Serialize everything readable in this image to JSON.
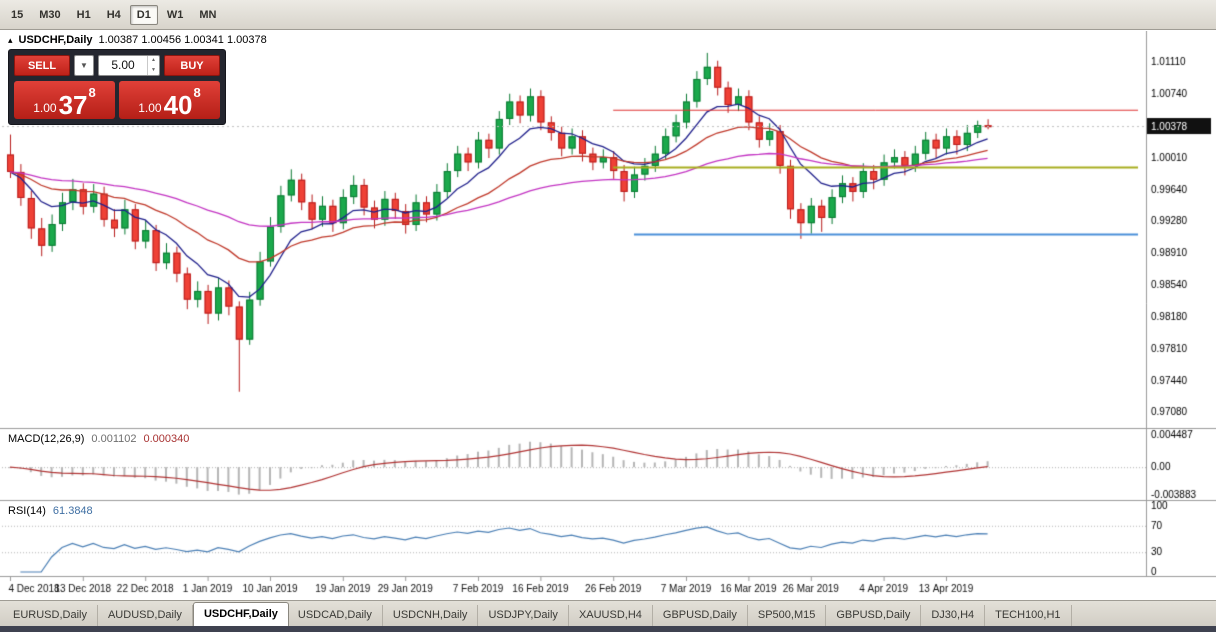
{
  "toolbar": {
    "timeframes": [
      "15",
      "M30",
      "H1",
      "H4",
      "D1",
      "W1",
      "MN"
    ],
    "active": "D1"
  },
  "chart_header": {
    "icon": "▴",
    "symbol": "USDCHF,Daily",
    "ohlc": "1.00387 1.00456 1.00341 1.00378"
  },
  "trade_panel": {
    "sell_label": "SELL",
    "buy_label": "BUY",
    "volume": "5.00",
    "dropdown_icon": "▼",
    "stepper_up": "▲",
    "stepper_down": "▼",
    "sell_quote": {
      "small": "1.00",
      "big": "37",
      "sup": "8"
    },
    "buy_quote": {
      "small": "1.00",
      "big": "40",
      "sup": "8"
    },
    "accent_red": "#c4302b"
  },
  "chart_data": {
    "type": "candlestick",
    "symbol": "USDCHF",
    "timeframe": "Daily",
    "current_price": "1.00378",
    "price_range": {
      "max": 1.0138,
      "min": 0.9696
    },
    "price_axis_labels": [
      "1.01110",
      "1.00740",
      "1.00370",
      "1.00010",
      "0.99640",
      "0.99280",
      "0.98910",
      "0.98540",
      "0.98180",
      "0.97810",
      "0.97440",
      "0.97080"
    ],
    "date_labels": [
      {
        "text": "4 Dec 2018",
        "index": 0
      },
      {
        "text": "13 Dec 2018",
        "index": 7
      },
      {
        "text": "22 Dec 2018",
        "index": 13
      },
      {
        "text": "1 Jan 2019",
        "index": 19
      },
      {
        "text": "10 Jan 2019",
        "index": 25
      },
      {
        "text": "19 Jan 2019",
        "index": 32
      },
      {
        "text": "29 Jan 2019",
        "index": 38
      },
      {
        "text": "7 Feb 2019",
        "index": 45
      },
      {
        "text": "16 Feb 2019",
        "index": 51
      },
      {
        "text": "26 Feb 2019",
        "index": 58
      },
      {
        "text": "7 Mar 2019",
        "index": 65
      },
      {
        "text": "16 Mar 2019",
        "index": 71
      },
      {
        "text": "26 Mar 2019",
        "index": 77
      },
      {
        "text": "4 Apr 2019",
        "index": 84
      },
      {
        "text": "13 Apr 2019",
        "index": 90
      }
    ],
    "candles": [
      [
        1.0005,
        1.0028,
        0.9978,
        0.9985
      ],
      [
        0.9985,
        0.9994,
        0.9946,
        0.9955
      ],
      [
        0.9955,
        0.9963,
        0.9908,
        0.992
      ],
      [
        0.992,
        0.9932,
        0.9888,
        0.99
      ],
      [
        0.99,
        0.9936,
        0.9893,
        0.9925
      ],
      [
        0.9925,
        0.9961,
        0.9917,
        0.995
      ],
      [
        0.995,
        0.9977,
        0.9941,
        0.9965
      ],
      [
        0.9965,
        0.9972,
        0.9936,
        0.9945
      ],
      [
        0.9945,
        0.9971,
        0.9938,
        0.996
      ],
      [
        0.996,
        0.9968,
        0.9922,
        0.993
      ],
      [
        0.993,
        0.9942,
        0.991,
        0.992
      ],
      [
        0.992,
        0.9953,
        0.9913,
        0.9942
      ],
      [
        0.9942,
        0.9948,
        0.9896,
        0.9905
      ],
      [
        0.9905,
        0.9929,
        0.9897,
        0.9918
      ],
      [
        0.9918,
        0.9924,
        0.9871,
        0.988
      ],
      [
        0.988,
        0.9903,
        0.9873,
        0.9892
      ],
      [
        0.9892,
        0.9899,
        0.9858,
        0.9868
      ],
      [
        0.9868,
        0.9875,
        0.9827,
        0.9838
      ],
      [
        0.9838,
        0.9859,
        0.9829,
        0.9848
      ],
      [
        0.9848,
        0.9855,
        0.981,
        0.9822
      ],
      [
        0.9822,
        0.9863,
        0.9814,
        0.9852
      ],
      [
        0.9852,
        0.986,
        0.982,
        0.983
      ],
      [
        0.983,
        0.9836,
        0.9732,
        0.9792
      ],
      [
        0.9792,
        0.9847,
        0.9786,
        0.9838
      ],
      [
        0.9838,
        0.9893,
        0.9831,
        0.9882
      ],
      [
        0.9882,
        0.9933,
        0.9876,
        0.9922
      ],
      [
        0.9922,
        0.9969,
        0.9915,
        0.9958
      ],
      [
        0.9958,
        0.9988,
        0.9951,
        0.9976
      ],
      [
        0.9976,
        0.9983,
        0.9941,
        0.995
      ],
      [
        0.995,
        0.9959,
        0.9919,
        0.993
      ],
      [
        0.993,
        0.9957,
        0.9922,
        0.9946
      ],
      [
        0.9946,
        0.9953,
        0.9916,
        0.9926
      ],
      [
        0.9926,
        0.9965,
        0.9919,
        0.9956
      ],
      [
        0.9956,
        0.9981,
        0.9948,
        0.997
      ],
      [
        0.997,
        0.9977,
        0.9935,
        0.9944
      ],
      [
        0.9944,
        0.9952,
        0.992,
        0.993
      ],
      [
        0.993,
        0.9963,
        0.9923,
        0.9954
      ],
      [
        0.9954,
        0.9961,
        0.9931,
        0.994
      ],
      [
        0.994,
        0.9948,
        0.9914,
        0.9924
      ],
      [
        0.9924,
        0.9959,
        0.9917,
        0.995
      ],
      [
        0.995,
        0.9957,
        0.9927,
        0.9936
      ],
      [
        0.9936,
        0.9971,
        0.9929,
        0.9962
      ],
      [
        0.9962,
        0.9995,
        0.9955,
        0.9986
      ],
      [
        0.9986,
        1.0015,
        0.9979,
        1.0006
      ],
      [
        1.0006,
        1.0013,
        0.9986,
        0.9996
      ],
      [
        0.9996,
        1.0031,
        0.9989,
        1.0022
      ],
      [
        1.0022,
        1.0029,
        1.0001,
        1.0012
      ],
      [
        1.0012,
        1.0055,
        1.0005,
        1.0046
      ],
      [
        1.0046,
        1.0075,
        1.0039,
        1.0066
      ],
      [
        1.0066,
        1.0073,
        1.0041,
        1.005
      ],
      [
        1.005,
        1.0081,
        1.0043,
        1.0072
      ],
      [
        1.0072,
        1.0079,
        1.0033,
        1.0042
      ],
      [
        1.0042,
        1.0049,
        1.0021,
        1.003
      ],
      [
        1.003,
        1.0037,
        1.0003,
        1.0012
      ],
      [
        1.0012,
        1.0035,
        1.0005,
        1.0026
      ],
      [
        1.0026,
        1.0033,
        0.9997,
        1.0006
      ],
      [
        1.0006,
        1.0013,
        0.9987,
        0.9996
      ],
      [
        0.9996,
        1.0011,
        0.9989,
        1.0002
      ],
      [
        1.0002,
        1.0009,
        0.9977,
        0.9986
      ],
      [
        0.9986,
        0.9993,
        0.9951,
        0.9962
      ],
      [
        0.9962,
        0.9991,
        0.9955,
        0.9982
      ],
      [
        0.9982,
        1.0001,
        0.9975,
        0.9992
      ],
      [
        0.9992,
        1.0015,
        0.9985,
        1.0006
      ],
      [
        1.0006,
        1.0035,
        0.9999,
        1.0026
      ],
      [
        1.0026,
        1.0051,
        1.0019,
        1.0042
      ],
      [
        1.0042,
        1.0075,
        1.0035,
        1.0066
      ],
      [
        1.0066,
        1.0101,
        1.0059,
        1.0092
      ],
      [
        1.0092,
        1.0122,
        1.0085,
        1.0106
      ],
      [
        1.0106,
        1.0113,
        1.0073,
        1.0082
      ],
      [
        1.0082,
        1.0089,
        1.0053,
        1.0062
      ],
      [
        1.0062,
        1.0081,
        1.0055,
        1.0072
      ],
      [
        1.0072,
        1.0079,
        1.0033,
        1.0042
      ],
      [
        1.0042,
        1.0049,
        1.0013,
        1.0022
      ],
      [
        1.0022,
        1.0041,
        1.0015,
        1.0032
      ],
      [
        1.0032,
        1.0039,
        0.9983,
        0.9992
      ],
      [
        0.9992,
        0.9999,
        0.9931,
        0.9942
      ],
      [
        0.9942,
        0.9949,
        0.9908,
        0.9926
      ],
      [
        0.9926,
        0.9955,
        0.9914,
        0.9946
      ],
      [
        0.9946,
        0.9953,
        0.9916,
        0.9932
      ],
      [
        0.9932,
        0.9965,
        0.9925,
        0.9956
      ],
      [
        0.9956,
        0.9981,
        0.9949,
        0.9972
      ],
      [
        0.9972,
        0.9979,
        0.9951,
        0.9962
      ],
      [
        0.9962,
        0.9995,
        0.9955,
        0.9986
      ],
      [
        0.9986,
        0.9993,
        0.9965,
        0.9976
      ],
      [
        0.9976,
        1.0005,
        0.9969,
        0.9996
      ],
      [
        0.9996,
        1.0011,
        0.9989,
        1.0002
      ],
      [
        1.0002,
        1.0009,
        0.9981,
        0.9992
      ],
      [
        0.9992,
        1.0015,
        0.9985,
        1.0006
      ],
      [
        1.0006,
        1.0031,
        0.9999,
        1.0022
      ],
      [
        1.0022,
        1.0029,
        1.0001,
        1.0012
      ],
      [
        1.0012,
        1.0035,
        1.0005,
        1.0026
      ],
      [
        1.0026,
        1.0033,
        1.0005,
        1.0016
      ],
      [
        1.0016,
        1.0039,
        1.0009,
        1.003
      ],
      [
        1.003,
        1.0044,
        1.0024,
        1.0039
      ],
      [
        1.00387,
        1.00456,
        1.00341,
        1.00378
      ]
    ],
    "style": {
      "bull_color": "#1ba94c",
      "bull_border": "#0b7a33",
      "bear_color": "#ef4136",
      "bear_border": "#b71c1c"
    },
    "moving_averages": [
      {
        "period": 8,
        "color": "#20208c"
      },
      {
        "period": 21,
        "color": "#c0392b"
      },
      {
        "period": 50,
        "color": "#c333c3"
      }
    ],
    "horizontal_lines": [
      {
        "price": 1.0056,
        "color": "#e03131",
        "width": 1,
        "start_index": 58
      },
      {
        "price": 0.999,
        "color": "#a8ad1e",
        "width": 2,
        "start_index": 58
      },
      {
        "price": 0.9913,
        "color": "#4a90d9",
        "width": 2,
        "start_index": 60
      }
    ],
    "macd": {
      "label": "MACD(12,26,9)",
      "value_main": "0.001102",
      "value_signal": "0.000340",
      "fast": 12,
      "slow": 26,
      "signal": 9,
      "axis_labels": [
        "0.004487",
        "0.00",
        "-0.003883"
      ],
      "axis_max": 0.004487,
      "axis_min": -0.003883,
      "histogram_color": "#b6b6b6",
      "signal_color": "#b03333"
    },
    "rsi": {
      "label": "RSI(14)",
      "value": "61.3848",
      "period": 14,
      "axis_labels": [
        "100",
        "70",
        "30",
        "0"
      ],
      "levels": [
        70,
        30
      ],
      "line_color": "#4a7fb5"
    }
  },
  "tabs": {
    "items": [
      "EURUSD,Daily",
      "AUDUSD,Daily",
      "USDCHF,Daily",
      "USDCAD,Daily",
      "USDCNH,Daily",
      "USDJPY,Daily",
      "XAUUSD,H4",
      "GBPUSD,Daily",
      "SP500,M15",
      "GBPUSD,Daily",
      "DJ30,H4",
      "TECH100,H1"
    ],
    "active_index": 2
  }
}
